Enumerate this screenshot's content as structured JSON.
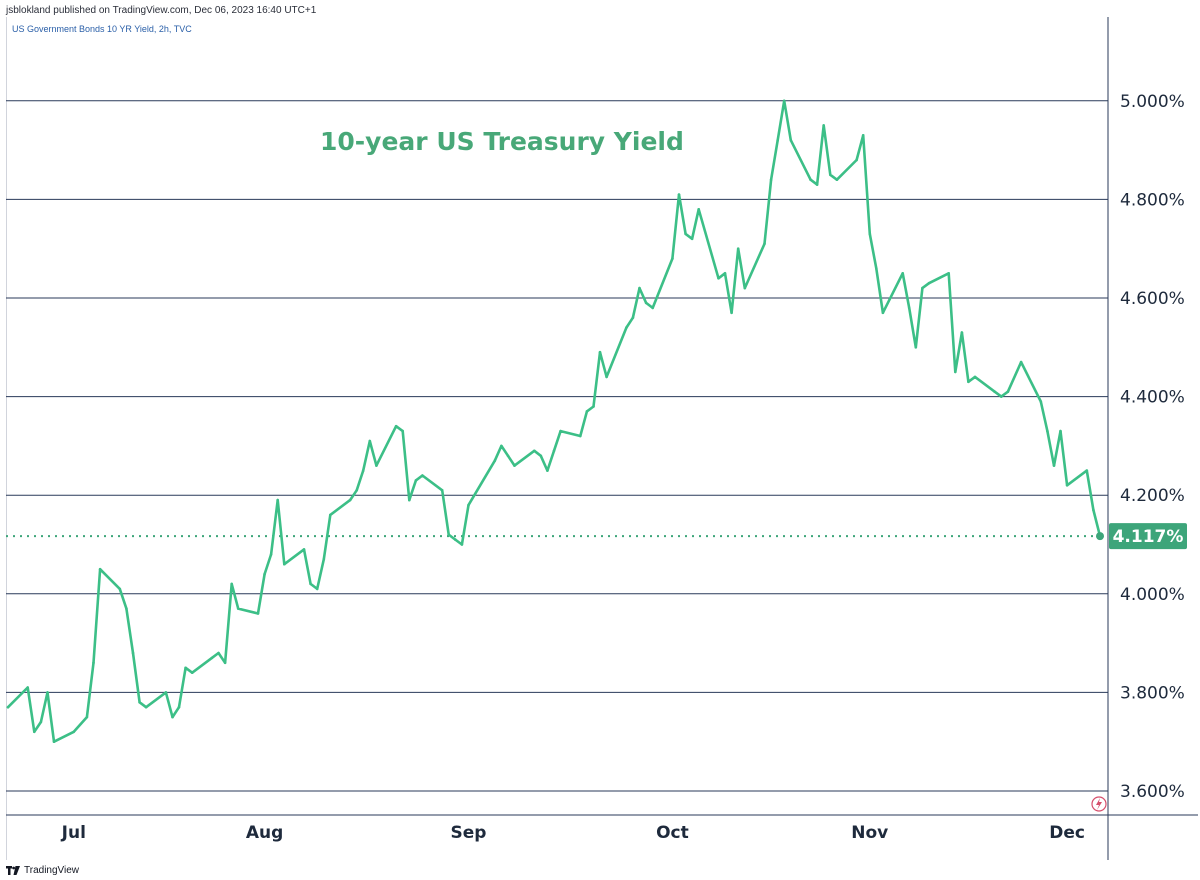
{
  "header": {
    "published": "jsblokland published on TradingView.com, Dec 06, 2023 16:40 UTC+1",
    "symbol": "US Government Bonds 10 YR Yield, 2h, TVC"
  },
  "footer": {
    "brand": "TradingView"
  },
  "colors": {
    "line": "#3cbf87",
    "grid": "#2a3a5a",
    "price_label_bg": "#3da57a",
    "title": "#48a878"
  },
  "chart_data": {
    "type": "line",
    "title": "10-year US Treasury Yield",
    "ylim": [
      3.55,
      5.2
    ],
    "y_ticks": [
      3.6,
      3.8,
      4.0,
      4.2,
      4.4,
      4.6,
      4.8,
      5.0
    ],
    "y_tick_labels": [
      "3.600%",
      "3.800%",
      "4.000%",
      "4.200%",
      "4.400%",
      "4.600%",
      "4.800%",
      "5.000%"
    ],
    "x_tick_labels": [
      "Jul",
      "Aug",
      "Sep",
      "Oct",
      "Nov",
      "Dec"
    ],
    "x_tick_dates": [
      "2023-07-03",
      "2023-08-01",
      "2023-09-01",
      "2023-10-02",
      "2023-11-01",
      "2023-12-01"
    ],
    "x_range": [
      "2023-06-23",
      "2023-12-06"
    ],
    "last_value": 4.117,
    "last_value_label": "4.117%",
    "last_value_line": "dotted",
    "series": [
      {
        "x": [
          "2023-06-23",
          "2023-06-26",
          "2023-06-27",
          "2023-06-28",
          "2023-06-29",
          "2023-06-30",
          "2023-07-03",
          "2023-07-05",
          "2023-07-06",
          "2023-07-07",
          "2023-07-10",
          "2023-07-11",
          "2023-07-12",
          "2023-07-13",
          "2023-07-14",
          "2023-07-17",
          "2023-07-18",
          "2023-07-19",
          "2023-07-20",
          "2023-07-21",
          "2023-07-24",
          "2023-07-25",
          "2023-07-26",
          "2023-07-27",
          "2023-07-28",
          "2023-07-31",
          "2023-08-01",
          "2023-08-02",
          "2023-08-03",
          "2023-08-04",
          "2023-08-07",
          "2023-08-08",
          "2023-08-09",
          "2023-08-10",
          "2023-08-11",
          "2023-08-14",
          "2023-08-15",
          "2023-08-16",
          "2023-08-17",
          "2023-08-18",
          "2023-08-21",
          "2023-08-22",
          "2023-08-23",
          "2023-08-24",
          "2023-08-25",
          "2023-08-28",
          "2023-08-29",
          "2023-08-30",
          "2023-08-31",
          "2023-09-01",
          "2023-09-05",
          "2023-09-06",
          "2023-09-07",
          "2023-09-08",
          "2023-09-11",
          "2023-09-12",
          "2023-09-13",
          "2023-09-14",
          "2023-09-15",
          "2023-09-18",
          "2023-09-19",
          "2023-09-20",
          "2023-09-21",
          "2023-09-22",
          "2023-09-25",
          "2023-09-26",
          "2023-09-27",
          "2023-09-28",
          "2023-09-29",
          "2023-10-02",
          "2023-10-03",
          "2023-10-04",
          "2023-10-05",
          "2023-10-06",
          "2023-10-09",
          "2023-10-10",
          "2023-10-11",
          "2023-10-12",
          "2023-10-13",
          "2023-10-16",
          "2023-10-17",
          "2023-10-18",
          "2023-10-19",
          "2023-10-20",
          "2023-10-23",
          "2023-10-24",
          "2023-10-25",
          "2023-10-26",
          "2023-10-27",
          "2023-10-30",
          "2023-10-31",
          "2023-11-01",
          "2023-11-02",
          "2023-11-03",
          "2023-11-06",
          "2023-11-07",
          "2023-11-08",
          "2023-11-09",
          "2023-11-10",
          "2023-11-13",
          "2023-11-14",
          "2023-11-15",
          "2023-11-16",
          "2023-11-17",
          "2023-11-20",
          "2023-11-21",
          "2023-11-22",
          "2023-11-24",
          "2023-11-27",
          "2023-11-28",
          "2023-11-29",
          "2023-11-30",
          "2023-12-01",
          "2023-12-04",
          "2023-12-05",
          "2023-12-06"
        ],
        "values": [
          3.77,
          3.81,
          3.72,
          3.74,
          3.8,
          3.7,
          3.72,
          3.75,
          3.86,
          4.05,
          4.01,
          3.97,
          3.88,
          3.78,
          3.77,
          3.8,
          3.75,
          3.77,
          3.85,
          3.84,
          3.87,
          3.88,
          3.86,
          4.02,
          3.97,
          3.96,
          4.04,
          4.08,
          4.19,
          4.06,
          4.09,
          4.02,
          4.01,
          4.07,
          4.16,
          4.19,
          4.21,
          4.25,
          4.31,
          4.26,
          4.34,
          4.33,
          4.19,
          4.23,
          4.24,
          4.21,
          4.12,
          4.11,
          4.1,
          4.18,
          4.27,
          4.3,
          4.28,
          4.26,
          4.29,
          4.28,
          4.25,
          4.29,
          4.33,
          4.32,
          4.37,
          4.38,
          4.49,
          4.44,
          4.54,
          4.56,
          4.62,
          4.59,
          4.58,
          4.68,
          4.81,
          4.73,
          4.72,
          4.78,
          4.64,
          4.65,
          4.57,
          4.7,
          4.62,
          4.71,
          4.84,
          4.92,
          5.0,
          4.92,
          4.84,
          4.83,
          4.95,
          4.85,
          4.84,
          4.88,
          4.93,
          4.73,
          4.66,
          4.57,
          4.65,
          4.58,
          4.5,
          4.62,
          4.63,
          4.65,
          4.45,
          4.53,
          4.43,
          4.44,
          4.41,
          4.4,
          4.41,
          4.47,
          4.39,
          4.33,
          4.26,
          4.33,
          4.22,
          4.25,
          4.17,
          4.117
        ]
      }
    ]
  }
}
